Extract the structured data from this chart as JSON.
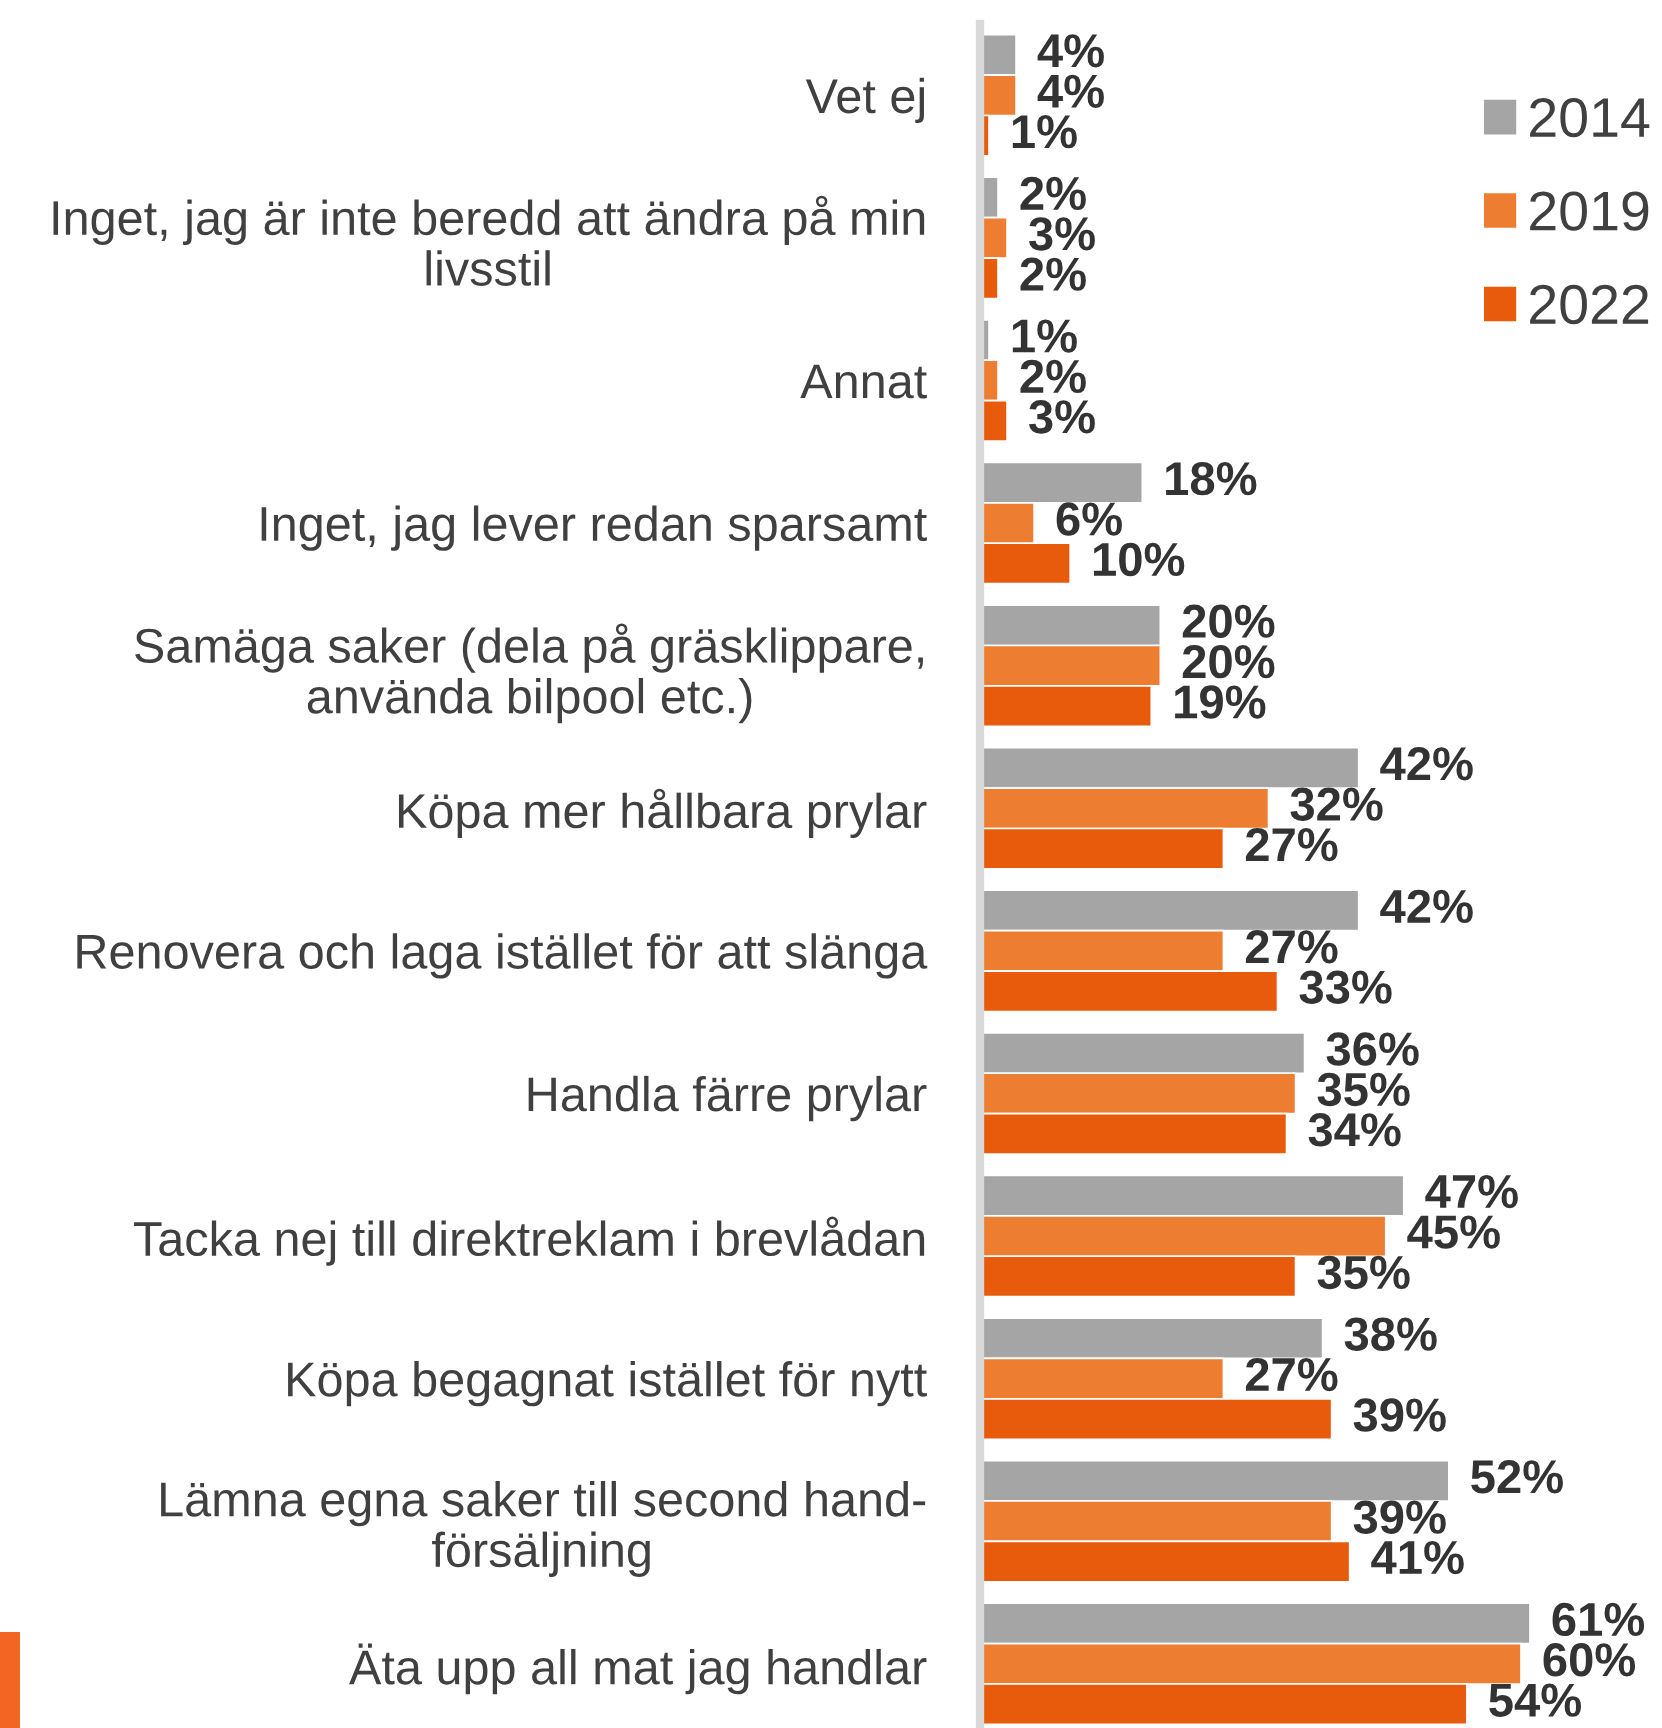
{
  "chart_data": {
    "type": "bar",
    "orientation": "horizontal",
    "categories": [
      "Vet ej",
      "Inget, jag är inte beredd att ändra på min livsstil",
      "Annat",
      "Inget, jag lever redan sparsamt",
      "Samäga saker (dela på gräsklippare, använda bilpool etc.)",
      "Köpa mer hållbara prylar",
      "Renovera och laga istället för att slänga",
      "Handla färre prylar",
      "Tacka nej till direktreklam i brevlådan",
      "Köpa begagnat istället för nytt",
      "Lämna egna saker till second hand-försäljning",
      "Äta upp all mat jag handlar"
    ],
    "series": [
      {
        "name": "2014",
        "color": "#a5a5a5",
        "values": [
          4,
          2,
          1,
          18,
          20,
          42,
          42,
          36,
          47,
          38,
          52,
          61
        ],
        "value_labels": [
          "4%",
          "2%",
          "1%",
          "18%",
          "20%",
          "42%",
          "42%",
          "36%",
          "47%",
          "38%",
          "52%",
          "61%"
        ]
      },
      {
        "name": "2019",
        "color": "#ed7d31",
        "values": [
          4,
          3,
          2,
          6,
          20,
          32,
          27,
          35,
          45,
          27,
          39,
          60
        ],
        "value_labels": [
          "4%",
          "3%",
          "2%",
          "6%",
          "20%",
          "32%",
          "27%",
          "35%",
          "45%",
          "27%",
          "39%",
          "60%"
        ]
      },
      {
        "name": "2022",
        "color": "#e95b0c",
        "values": [
          1,
          2,
          3,
          10,
          19,
          27,
          33,
          34,
          35,
          39,
          41,
          54
        ],
        "value_labels": [
          "1%",
          "2%",
          "3%",
          "10%",
          "19%",
          "27%",
          "33%",
          "34%",
          "35%",
          "39%",
          "41%",
          "54%"
        ]
      }
    ],
    "tick_labels": "y",
    "legend": "top right"
  }
}
